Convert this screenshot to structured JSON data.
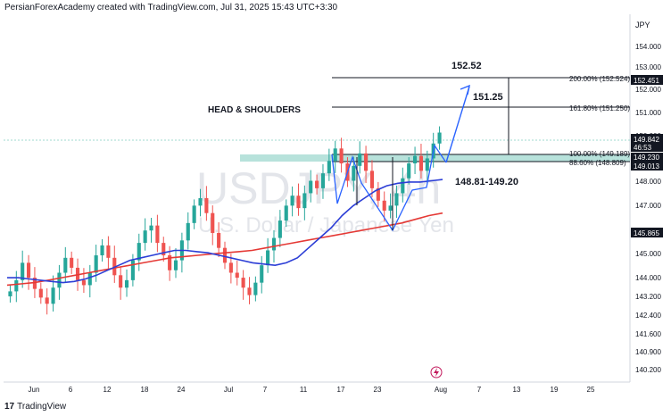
{
  "header": {
    "attribution": "PersianForexAcademy created with TradingView.com, Jul 31, 2025 15:43 UTC+3:30"
  },
  "footer": {
    "logo_glyph": "17",
    "brand_label": "TradingView"
  },
  "watermark": {
    "symbol": "USDJPY, 4h",
    "description": "U.S. Dollar / Japanese Yen"
  },
  "price_axis": {
    "currency": "JPY",
    "ticks": [
      "154.000",
      "153.000",
      "152.000",
      "151.000",
      "150.000",
      "149.000",
      "148.000",
      "147.000",
      "146.000",
      "145.000",
      "144.000",
      "143.200",
      "142.400",
      "141.600",
      "140.900",
      "140.200"
    ]
  },
  "time_axis": {
    "ticks": [
      "Jun",
      "6",
      "12",
      "18",
      "24",
      "Jul",
      "7",
      "11",
      "17",
      "23",
      "Aug",
      "7",
      "13",
      "19",
      "25"
    ]
  },
  "price_tags": [
    {
      "label": "152.451",
      "style": "dark"
    },
    {
      "label": "149.842",
      "style": "dark"
    },
    {
      "label": "46:53",
      "style": "dark"
    },
    {
      "label": "149.230",
      "style": "dark"
    },
    {
      "label": "149.013",
      "style": "dark"
    },
    {
      "label": "145.865",
      "style": "dark"
    }
  ],
  "annotations": {
    "pattern_title": "HEAD & SHOULDERS",
    "target_1": "152.52",
    "target_2": "151.25",
    "zone": "148.81-149.20",
    "fib_200": "200.00% (152.524)",
    "fib_161": "161.80% (151.250)",
    "fib_100": "100.00% (149.189)",
    "fib_886": "88.60% (148.809)"
  },
  "colors": {
    "up": "#26a69a",
    "down": "#ef5350",
    "ma_fast": "#2c3ed6",
    "ma_slow": "#e53935",
    "projection": "#2962ff",
    "zone": "#9fd8cf",
    "tag_bg": "#131722"
  },
  "chart_data": {
    "type": "candlestick",
    "title": "USDJPY, 4h",
    "x_range": [
      "2025-05-30",
      "2025-08-28"
    ],
    "ylim": [
      139.8,
      154.6
    ],
    "candles_close": [
      143.45,
      143.9,
      144.6,
      144.0,
      143.55,
      143.2,
      142.95,
      143.6,
      144.2,
      144.8,
      144.4,
      143.9,
      143.7,
      144.2,
      144.9,
      145.3,
      144.8,
      144.1,
      143.6,
      143.9,
      144.7,
      145.4,
      145.9,
      146.1,
      145.4,
      144.9,
      144.3,
      144.7,
      145.5,
      146.2,
      146.9,
      147.2,
      146.6,
      145.8,
      145.2,
      144.6,
      144.2,
      144.0,
      143.6,
      143.3,
      143.8,
      144.5,
      145.1,
      145.6,
      146.3,
      146.9,
      147.3,
      146.8,
      147.4,
      147.9,
      147.6,
      148.2,
      148.7,
      149.2,
      148.6,
      147.9,
      148.5,
      149.0,
      148.3,
      147.6,
      147.1,
      146.7,
      146.9,
      147.4,
      148.0,
      148.6,
      148.9,
      148.3,
      148.8,
      149.4,
      149.84
    ],
    "ma_fast": [
      144.0,
      144.0,
      143.95,
      143.9,
      143.85,
      143.8,
      143.85,
      143.95,
      144.1,
      144.3,
      144.5,
      144.7,
      144.8,
      144.9,
      145.0,
      145.1,
      145.1,
      145.05,
      145.0,
      144.9,
      144.8,
      144.7,
      144.6,
      144.55,
      144.5,
      144.6,
      144.8,
      145.2,
      145.6,
      146.0,
      146.5,
      146.9,
      147.2,
      147.5,
      147.7,
      147.8,
      147.85,
      147.85,
      147.9,
      147.95
    ],
    "ma_slow": [
      143.7,
      143.75,
      143.8,
      143.9,
      144.0,
      144.1,
      144.2,
      144.3,
      144.4,
      144.5,
      144.6,
      144.7,
      144.8,
      144.85,
      144.9,
      144.95,
      145.0,
      145.05,
      145.1,
      145.2,
      145.3,
      145.4,
      145.5,
      145.6,
      145.7,
      145.8,
      145.9,
      146.0,
      146.1,
      146.2,
      146.35,
      146.5,
      146.6
    ],
    "levels": [
      {
        "label": "200.00%",
        "value": 152.524
      },
      {
        "label": "161.80%",
        "value": 151.25
      },
      {
        "label": "100.00%",
        "value": 149.189
      },
      {
        "label": "88.60%",
        "value": 148.809
      }
    ],
    "zone": [
      148.81,
      149.2
    ],
    "last_price": 149.842
  }
}
